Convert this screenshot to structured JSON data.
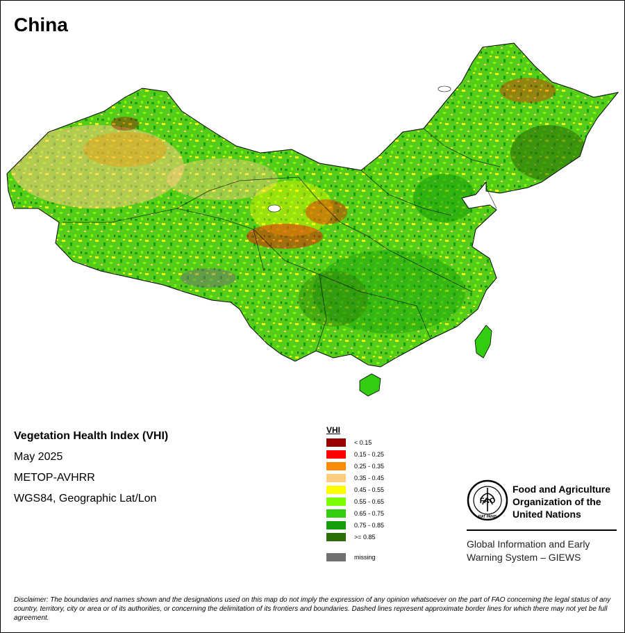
{
  "title": "China",
  "map": {
    "region": "China",
    "colors": {
      "sea": "#ffffff",
      "boundary": "#000000",
      "lake": "#ffffff"
    }
  },
  "meta": {
    "index_name": "Vegetation Health Index (VHI)",
    "period": "May 2025",
    "sensor": "METOP-AVHRR",
    "projection": "WGS84, Geographic Lat/Lon"
  },
  "legend": {
    "title": "VHI",
    "items": [
      {
        "label": "< 0.15",
        "color": "#990000"
      },
      {
        "label": "0.15 - 0.25",
        "color": "#ff0000"
      },
      {
        "label": "0.25 - 0.35",
        "color": "#ff8c00"
      },
      {
        "label": "0.35 - 0.45",
        "color": "#ffcc80"
      },
      {
        "label": "0.45 - 0.55",
        "color": "#ffff00"
      },
      {
        "label": "0.55 - 0.65",
        "color": "#7cfc00"
      },
      {
        "label": "0.65 - 0.75",
        "color": "#33cc11"
      },
      {
        "label": "0.75 - 0.85",
        "color": "#139e0b"
      },
      {
        "label": ">= 0.85",
        "color": "#2b6e06"
      }
    ],
    "missing": {
      "label": "missing",
      "color": "#707070"
    }
  },
  "fao": {
    "logo_text": "FAO",
    "logo_motto": "FIAT PANIS",
    "name_line1": "Food and Agriculture",
    "name_line2": "Organization of the",
    "name_line3": "United Nations",
    "system_line1": "Global Information and Early",
    "system_line2": "Warning System – GIEWS"
  },
  "disclaimer": "Disclaimer: The boundaries and names shown and the designations used on this map do not imply the expression of any opinion whatsoever on the part of FAO concerning the legal status of any country, territory, city or area or of its authorities, or concerning the delimitation of its frontiers and boundaries. Dashed lines represent approximate border lines for which there may not yet be full agreement."
}
